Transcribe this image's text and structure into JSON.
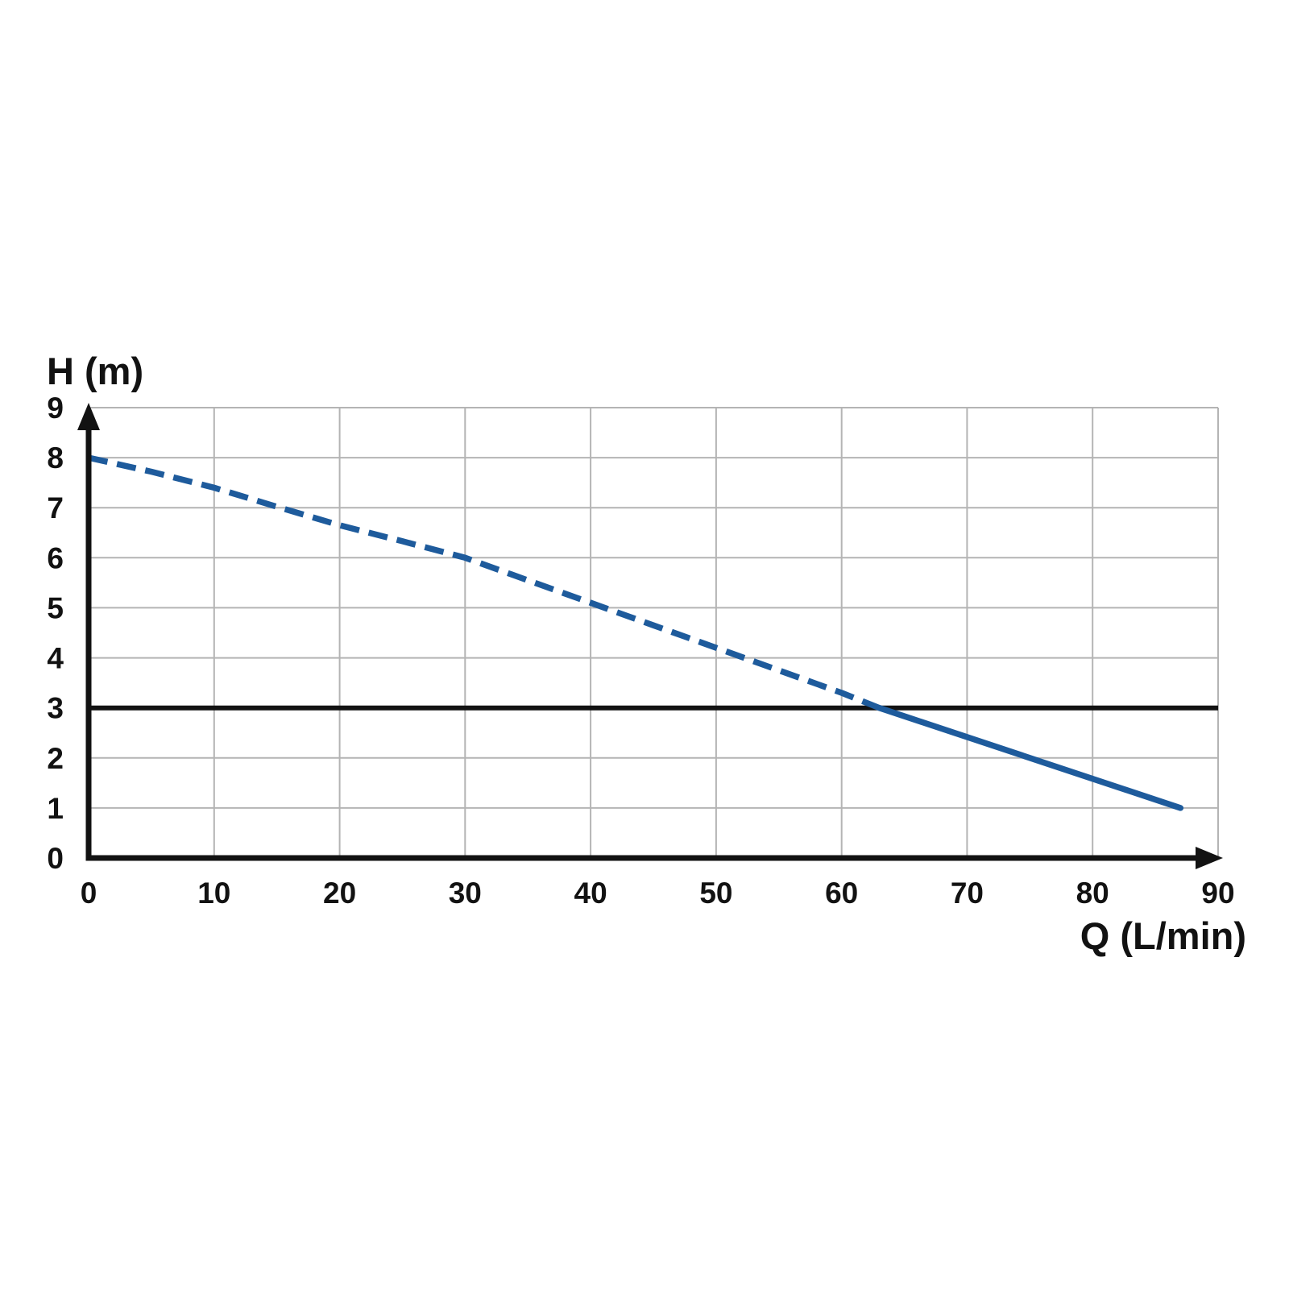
{
  "page": {
    "background": "#ffffff",
    "description": "Pump performance curve: head H (m) versus flow rate Q (L/min)"
  },
  "chart_data": {
    "type": "line",
    "title": "",
    "xlabel": "Q (L/min)",
    "ylabel": "H (m)",
    "xlim": [
      0,
      90
    ],
    "ylim": [
      0,
      9
    ],
    "x_ticks": [
      0,
      10,
      20,
      30,
      40,
      50,
      60,
      70,
      80,
      90
    ],
    "y_ticks": [
      0,
      1,
      2,
      3,
      4,
      5,
      6,
      7,
      8,
      9
    ],
    "grid": true,
    "legend": false,
    "reference_line": {
      "axis": "horizontal",
      "value": 3
    },
    "series": [
      {
        "name": "pump-head-curve-dashed",
        "style": "dashed",
        "x": [
          0,
          5,
          10,
          15,
          20,
          25,
          30,
          35,
          40,
          45,
          50,
          55,
          60,
          63
        ],
        "y": [
          8.0,
          7.72,
          7.4,
          7.02,
          6.65,
          6.33,
          6.0,
          5.55,
          5.1,
          4.65,
          4.2,
          3.75,
          3.3,
          3.0
        ]
      },
      {
        "name": "pump-head-curve-solid",
        "style": "solid",
        "x": [
          63,
          87
        ],
        "y": [
          3.0,
          1.0
        ]
      }
    ],
    "colors": {
      "curve": "#1e5b9c",
      "grid": "#b4b4b4",
      "axis": "#121212",
      "reference_line": "#121212",
      "text": "#121212"
    }
  }
}
